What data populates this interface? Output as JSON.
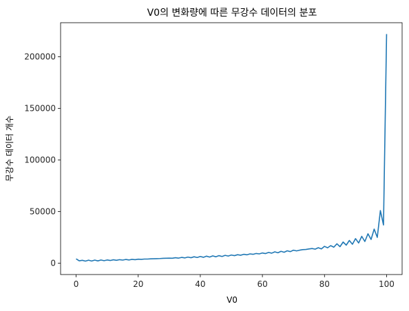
{
  "chart_data": {
    "type": "line",
    "title": "V0의 변화량에 따른 무강수 데이터의 분포",
    "xlabel": "V0",
    "ylabel": "무강수 데이터 개수",
    "xlim": [
      -5,
      105
    ],
    "ylim": [
      -11000,
      233000
    ],
    "x_ticks": [
      0,
      20,
      40,
      60,
      80,
      100
    ],
    "x_tick_labels": [
      "0",
      "20",
      "40",
      "60",
      "80",
      "100"
    ],
    "y_ticks": [
      0,
      50000,
      100000,
      150000,
      200000
    ],
    "y_tick_labels": [
      "0",
      "50000",
      "100000",
      "150000",
      "200000"
    ],
    "grid": false,
    "legend": "none",
    "series": [
      {
        "color": "#1f77b4",
        "x": [
          0,
          1,
          2,
          3,
          4,
          5,
          6,
          7,
          8,
          9,
          10,
          11,
          12,
          13,
          14,
          15,
          16,
          17,
          18,
          19,
          20,
          21,
          22,
          23,
          24,
          25,
          26,
          27,
          28,
          29,
          30,
          31,
          32,
          33,
          34,
          35,
          36,
          37,
          38,
          39,
          40,
          41,
          42,
          43,
          44,
          45,
          46,
          47,
          48,
          49,
          50,
          51,
          52,
          53,
          54,
          55,
          56,
          57,
          58,
          59,
          60,
          61,
          62,
          63,
          64,
          65,
          66,
          67,
          68,
          69,
          70,
          71,
          72,
          73,
          74,
          75,
          76,
          77,
          78,
          79,
          80,
          81,
          82,
          83,
          84,
          85,
          86,
          87,
          88,
          89,
          90,
          91,
          92,
          93,
          94,
          95,
          96,
          97,
          98,
          99,
          100
        ],
        "values": [
          4200,
          2300,
          2800,
          2000,
          2900,
          2100,
          3000,
          2200,
          3100,
          2400,
          3100,
          2600,
          3300,
          2800,
          3400,
          3000,
          3600,
          3100,
          3700,
          3400,
          3900,
          3700,
          4000,
          4000,
          4200,
          4300,
          4400,
          4500,
          4700,
          4800,
          4900,
          4800,
          5300,
          4900,
          5600,
          5100,
          5900,
          5300,
          6200,
          5500,
          6500,
          5700,
          6800,
          5900,
          7100,
          6200,
          7300,
          6500,
          7600,
          6900,
          7900,
          7300,
          8200,
          7700,
          8600,
          8100,
          9000,
          8600,
          9400,
          9000,
          9900,
          9300,
          10400,
          9700,
          11000,
          10100,
          11500,
          10600,
          12000,
          11200,
          12600,
          11900,
          12600,
          13100,
          13300,
          13800,
          14200,
          13600,
          15000,
          13800,
          16300,
          14900,
          17000,
          15500,
          18800,
          16000,
          20500,
          17500,
          22000,
          18300,
          23800,
          19600,
          26000,
          21000,
          28500,
          23000,
          33000,
          25000,
          51000,
          37000,
          222000
        ]
      }
    ]
  }
}
